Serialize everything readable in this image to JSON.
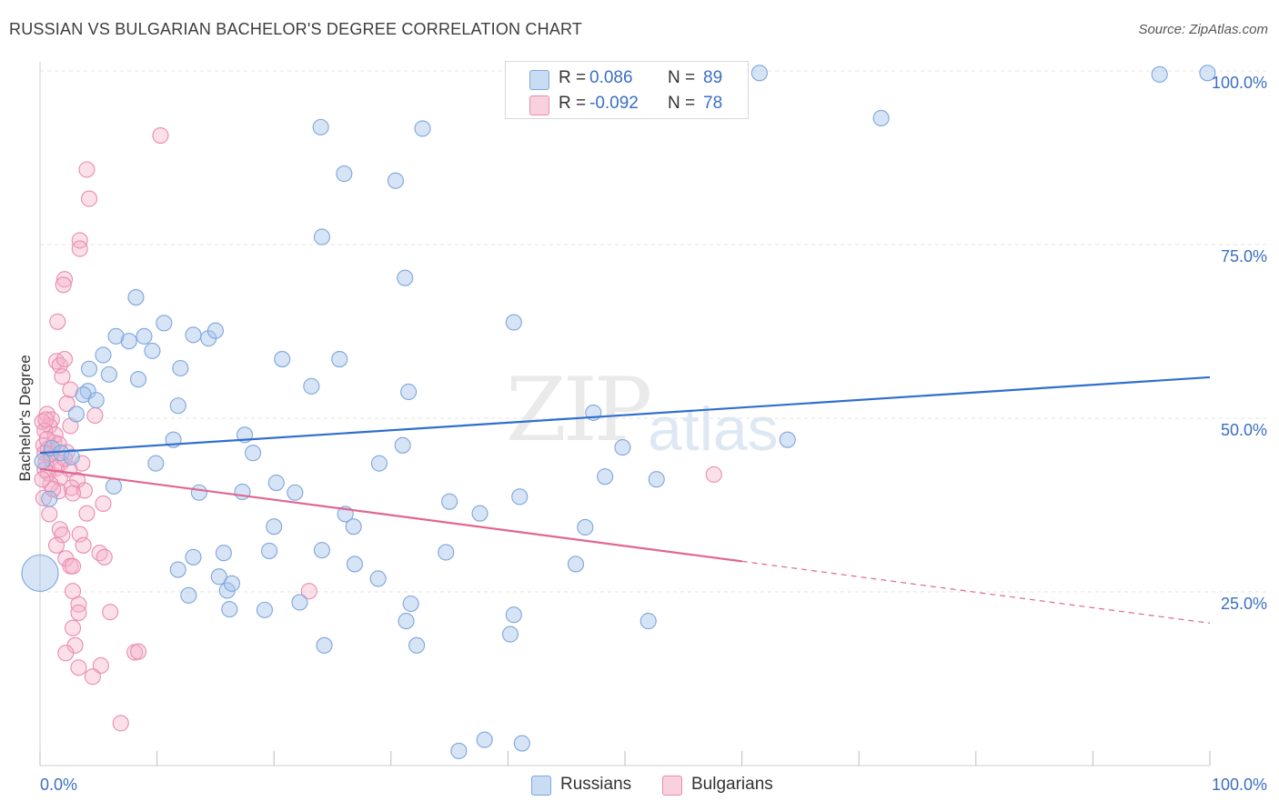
{
  "title": "RUSSIAN VS BULGARIAN BACHELOR'S DEGREE CORRELATION CHART",
  "source": "Source: ZipAtlas.com",
  "watermark": {
    "zip": "ZIP",
    "atlas": "atlas"
  },
  "colors": {
    "russians_fill": "rgba(164,196,236,0.45)",
    "russians_stroke": "#7ea6dc",
    "russians_line": "#2f6fce",
    "bulgarians_fill": "rgba(244,176,200,0.40)",
    "bulgarians_stroke": "#e98db0",
    "bulgarians_line": "#e06690",
    "tick_label": "#3a6fc4",
    "grid": "#e3e3e3"
  },
  "legend_top": {
    "rows": [
      {
        "r_label": "R =",
        "r_value": " 0.086",
        "n_label": "N =",
        "n_value": "89"
      },
      {
        "r_label": "R =",
        "r_value": "-0.092",
        "n_label": "N =",
        "n_value": "78"
      }
    ]
  },
  "legend_bottom": {
    "items": [
      "Russians",
      "Bulgarians"
    ]
  },
  "chart_data": {
    "type": "scatter",
    "title": "RUSSIAN VS BULGARIAN BACHELOR'S DEGREE CORRELATION CHART",
    "xlabel": "",
    "ylabel": "Bachelor's Degree",
    "xlim": [
      0,
      100
    ],
    "ylim": [
      0,
      100
    ],
    "x_tick_labels": [
      "0.0%",
      "100.0%"
    ],
    "y_tick_values": [
      25,
      50,
      75,
      100
    ],
    "y_tick_labels": [
      "25.0%",
      "50.0%",
      "75.0%",
      "100.0%"
    ],
    "grid": true,
    "series": [
      {
        "name": "Russians",
        "R": 0.086,
        "N": 89,
        "trend": {
          "x": [
            0,
            100
          ],
          "y": [
            45.0,
            55.9
          ]
        },
        "points": [
          [
            61.5,
            99.7
          ],
          [
            99.8,
            99.7
          ],
          [
            95.7,
            99.5
          ],
          [
            71.9,
            93.2
          ],
          [
            24.0,
            91.9
          ],
          [
            32.7,
            91.7
          ],
          [
            26.0,
            85.2
          ],
          [
            30.4,
            84.2
          ],
          [
            24.1,
            76.1
          ],
          [
            31.2,
            70.2
          ],
          [
            8.2,
            67.4
          ],
          [
            10.6,
            63.7
          ],
          [
            40.5,
            63.8
          ],
          [
            6.5,
            61.8
          ],
          [
            8.9,
            61.8
          ],
          [
            13.1,
            62.0
          ],
          [
            14.4,
            61.5
          ],
          [
            15.0,
            62.6
          ],
          [
            7.6,
            61.1
          ],
          [
            9.6,
            59.7
          ],
          [
            5.4,
            59.1
          ],
          [
            20.7,
            58.5
          ],
          [
            25.6,
            58.5
          ],
          [
            4.2,
            57.1
          ],
          [
            5.9,
            56.3
          ],
          [
            8.4,
            55.6
          ],
          [
            12.0,
            57.2
          ],
          [
            23.2,
            54.6
          ],
          [
            31.5,
            53.8
          ],
          [
            4.1,
            53.9
          ],
          [
            3.7,
            53.4
          ],
          [
            4.8,
            52.6
          ],
          [
            11.8,
            51.8
          ],
          [
            3.1,
            50.6
          ],
          [
            47.3,
            50.8
          ],
          [
            63.9,
            46.9
          ],
          [
            17.5,
            47.6
          ],
          [
            11.4,
            46.9
          ],
          [
            31.0,
            46.1
          ],
          [
            1.0,
            45.7
          ],
          [
            1.8,
            45.0
          ],
          [
            18.2,
            45.0
          ],
          [
            9.9,
            43.5
          ],
          [
            29.0,
            43.5
          ],
          [
            49.8,
            45.8
          ],
          [
            2.7,
            44.4
          ],
          [
            0.2,
            43.8
          ],
          [
            20.2,
            40.7
          ],
          [
            48.3,
            41.6
          ],
          [
            52.7,
            41.2
          ],
          [
            13.6,
            39.3
          ],
          [
            17.3,
            39.4
          ],
          [
            21.8,
            39.3
          ],
          [
            35.0,
            38.0
          ],
          [
            41.0,
            38.7
          ],
          [
            37.6,
            36.3
          ],
          [
            26.1,
            36.2
          ],
          [
            46.6,
            34.3
          ],
          [
            20.0,
            34.4
          ],
          [
            26.8,
            34.4
          ],
          [
            24.1,
            31.0
          ],
          [
            15.7,
            30.6
          ],
          [
            19.6,
            30.9
          ],
          [
            34.7,
            30.7
          ],
          [
            13.1,
            30.0
          ],
          [
            26.9,
            29.0
          ],
          [
            45.8,
            29.0
          ],
          [
            11.8,
            28.2
          ],
          [
            0.0,
            27.7
          ],
          [
            15.3,
            27.2
          ],
          [
            28.9,
            26.9
          ],
          [
            16.0,
            25.2
          ],
          [
            16.4,
            26.2
          ],
          [
            12.7,
            24.5
          ],
          [
            22.2,
            23.5
          ],
          [
            19.2,
            22.4
          ],
          [
            31.7,
            23.3
          ],
          [
            40.5,
            21.7
          ],
          [
            31.3,
            20.8
          ],
          [
            52.0,
            20.8
          ],
          [
            40.2,
            18.9
          ],
          [
            32.2,
            17.3
          ],
          [
            24.3,
            17.3
          ],
          [
            16.2,
            22.5
          ],
          [
            35.8,
            2.1
          ],
          [
            38.0,
            3.7
          ],
          [
            41.2,
            3.2
          ],
          [
            6.3,
            40.2
          ],
          [
            0.8,
            38.4
          ]
        ]
      },
      {
        "name": "Bulgarians",
        "R": -0.092,
        "N": 78,
        "trend": {
          "x": [
            0,
            60
          ],
          "y": [
            42.7,
            29.4
          ]
        },
        "trend_dashed": {
          "x": [
            60,
            100
          ],
          "y": [
            29.4,
            20.5
          ]
        },
        "points": [
          [
            10.3,
            90.7
          ],
          [
            4.0,
            85.8
          ],
          [
            4.2,
            81.6
          ],
          [
            3.4,
            75.6
          ],
          [
            3.4,
            74.4
          ],
          [
            2.1,
            70.0
          ],
          [
            2.0,
            69.2
          ],
          [
            1.5,
            63.9
          ],
          [
            1.4,
            58.2
          ],
          [
            1.7,
            57.6
          ],
          [
            1.9,
            56.0
          ],
          [
            2.1,
            58.5
          ],
          [
            2.3,
            52.1
          ],
          [
            2.6,
            54.1
          ],
          [
            4.7,
            50.4
          ],
          [
            0.6,
            50.6
          ],
          [
            1.0,
            49.8
          ],
          [
            0.8,
            48.9
          ],
          [
            0.2,
            49.5
          ],
          [
            0.4,
            48.2
          ],
          [
            2.6,
            48.9
          ],
          [
            0.3,
            46.1
          ],
          [
            0.7,
            45.6
          ],
          [
            1.2,
            46.5
          ],
          [
            2.3,
            45.1
          ],
          [
            0.4,
            45.0
          ],
          [
            0.9,
            44.2
          ],
          [
            1.8,
            43.6
          ],
          [
            3.6,
            43.5
          ],
          [
            0.5,
            43.6
          ],
          [
            1.4,
            42.8
          ],
          [
            2.5,
            42.7
          ],
          [
            0.7,
            42.1
          ],
          [
            1.7,
            41.4
          ],
          [
            3.2,
            41.1
          ],
          [
            2.7,
            40.0
          ],
          [
            1.6,
            39.5
          ],
          [
            0.3,
            38.5
          ],
          [
            5.4,
            37.7
          ],
          [
            0.8,
            36.2
          ],
          [
            4.0,
            36.3
          ],
          [
            1.7,
            34.0
          ],
          [
            1.9,
            33.2
          ],
          [
            3.4,
            33.3
          ],
          [
            1.4,
            31.7
          ],
          [
            3.7,
            31.7
          ],
          [
            5.1,
            30.6
          ],
          [
            5.5,
            30.0
          ],
          [
            2.2,
            29.8
          ],
          [
            2.6,
            28.7
          ],
          [
            2.8,
            28.7
          ],
          [
            23.0,
            25.1
          ],
          [
            2.8,
            25.1
          ],
          [
            3.3,
            23.2
          ],
          [
            6.0,
            22.1
          ],
          [
            3.3,
            22.0
          ],
          [
            2.8,
            19.8
          ],
          [
            3.0,
            17.3
          ],
          [
            8.1,
            16.3
          ],
          [
            8.4,
            16.4
          ],
          [
            2.2,
            16.2
          ],
          [
            3.3,
            14.1
          ],
          [
            5.2,
            14.4
          ],
          [
            4.5,
            12.8
          ],
          [
            6.9,
            6.1
          ],
          [
            57.6,
            41.9
          ],
          [
            0.4,
            42.6
          ],
          [
            0.9,
            40.5
          ],
          [
            1.3,
            47.6
          ],
          [
            2.1,
            44.2
          ],
          [
            0.6,
            47.0
          ],
          [
            1.1,
            39.8
          ],
          [
            3.8,
            39.6
          ],
          [
            0.2,
            41.2
          ],
          [
            0.9,
            44.9
          ],
          [
            1.6,
            46.3
          ],
          [
            2.8,
            39.2
          ],
          [
            0.5,
            49.8
          ]
        ]
      }
    ]
  }
}
